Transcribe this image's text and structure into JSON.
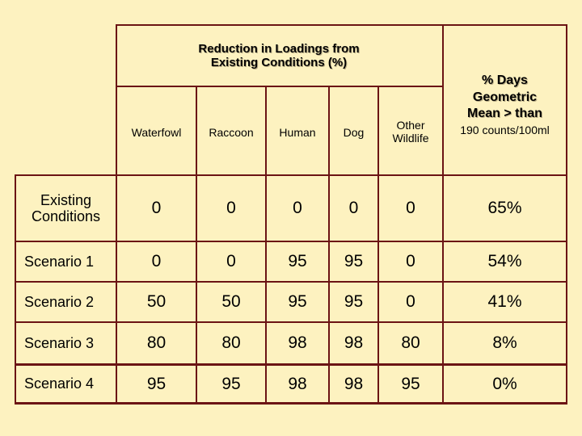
{
  "table": {
    "group_header": "Reduction in Loadings from Existing Conditions (%)",
    "pct_header_main": "% Days Geometric Mean > than",
    "pct_header_sub": "190 counts/100ml",
    "columns": [
      "Waterfowl",
      "Raccoon",
      "Human",
      "Dog",
      "Other Wildlife"
    ],
    "rows": [
      {
        "label": "Existing Conditions",
        "values": [
          "0",
          "0",
          "0",
          "0",
          "0"
        ],
        "pct": "65%"
      },
      {
        "label": "Scenario 1",
        "values": [
          "0",
          "0",
          "95",
          "95",
          "0"
        ],
        "pct": "54%"
      },
      {
        "label": "Scenario 2",
        "values": [
          "50",
          "50",
          "95",
          "95",
          "0"
        ],
        "pct": "41%"
      },
      {
        "label": "Scenario 3",
        "values": [
          "80",
          "80",
          "98",
          "98",
          "80"
        ],
        "pct": "8%"
      },
      {
        "label": "Scenario 4",
        "values": [
          "95",
          "95",
          "98",
          "98",
          "95"
        ],
        "pct": "0%"
      }
    ]
  },
  "colors": {
    "background": "#fdf2c0",
    "border": "#6b1414"
  }
}
